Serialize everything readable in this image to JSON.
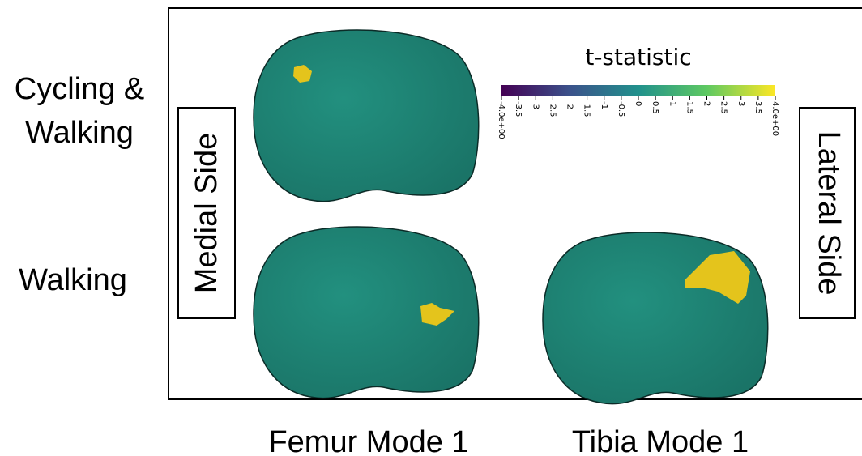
{
  "row_labels": {
    "top": [
      "Cycling &",
      "Walking"
    ],
    "bottom": "Walking"
  },
  "side_labels": {
    "left": "Medial Side",
    "right": "Lateral Side"
  },
  "column_labels": [
    "Femur Mode 1",
    "Tibia Mode 1"
  ],
  "colorbar": {
    "title": "t-statistic",
    "ticks": [
      "-4.0e+00",
      "-3.5",
      "-3",
      "-2.5",
      "-2",
      "-1.5",
      "-1",
      "-0.5",
      "0",
      "0.5",
      "1",
      "1.5",
      "2",
      "2.5",
      "3",
      "3.5",
      "4.0e+00"
    ]
  }
}
